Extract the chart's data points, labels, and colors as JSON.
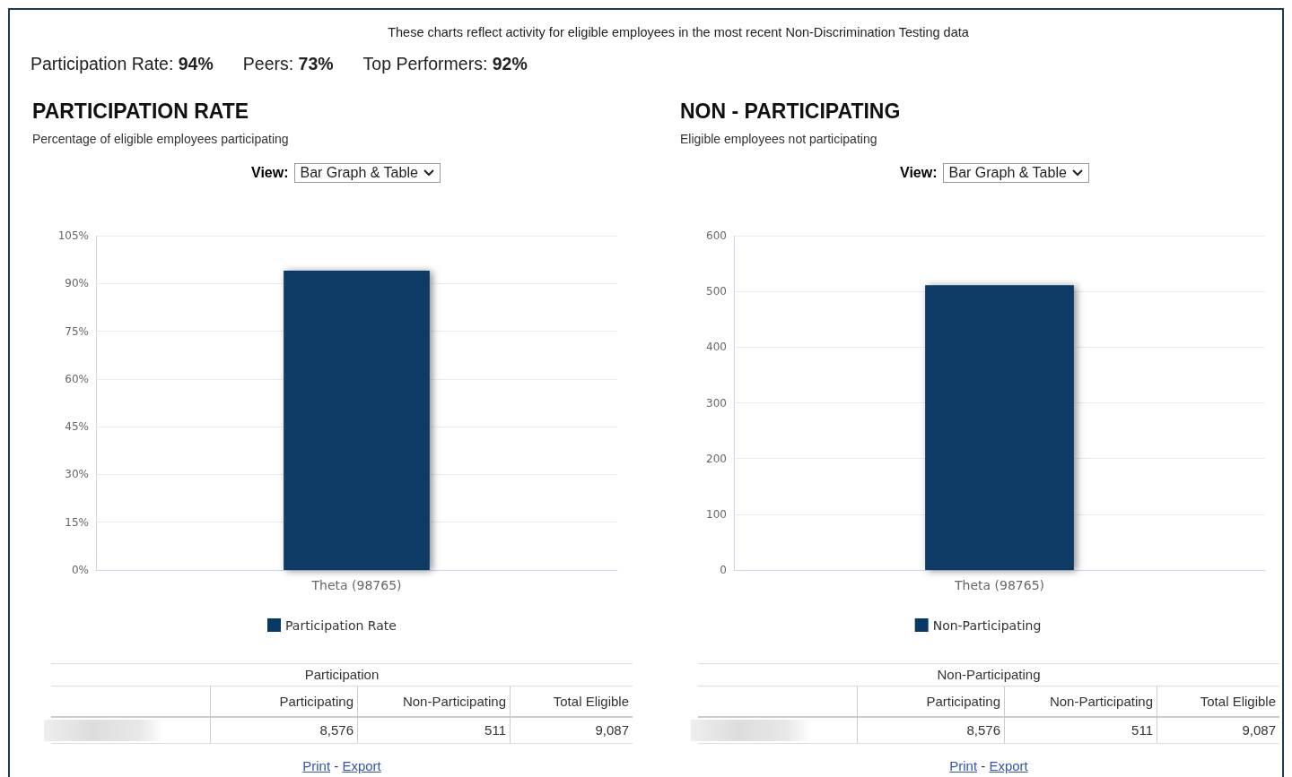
{
  "chart_data": [
    {
      "type": "bar",
      "title": "PARTICIPATION RATE",
      "subtitle": "Percentage of eligible employees participating",
      "categories": [
        "Theta (98765)"
      ],
      "series": [
        {
          "name": "Participation Rate",
          "color": "#083a66",
          "values": [
            94
          ]
        }
      ],
      "ylim": [
        0,
        105
      ],
      "yticks": [
        {
          "value": 0,
          "label": "0%"
        },
        {
          "value": 15,
          "label": "15%"
        },
        {
          "value": 30,
          "label": "30%"
        },
        {
          "value": 45,
          "label": "45%"
        },
        {
          "value": 60,
          "label": "60%"
        },
        {
          "value": 75,
          "label": "75%"
        },
        {
          "value": 90,
          "label": "90%"
        },
        {
          "value": 105,
          "label": "105%"
        }
      ],
      "grid": "y",
      "legend": "bottom",
      "annotations": [
        "These charts reflect activity for eligible employees in the most recent Non-Discrimination Testing data",
        "Participation Rate: 94%",
        "Peers: 73%",
        "Top Performers: 92%",
        "View:",
        "Bar Graph & Table",
        "Participation",
        "Participating",
        "Non-Participating",
        "Total Eligible",
        "8,576",
        "511",
        "9,087",
        "Print",
        "-",
        "Export"
      ]
    },
    {
      "type": "bar",
      "title": "NON - PARTICIPATING",
      "subtitle": "Eligible employees not participating",
      "categories": [
        "Theta (98765)"
      ],
      "series": [
        {
          "name": "Non-Participating",
          "color": "#083a66",
          "values": [
            511
          ]
        }
      ],
      "ylim": [
        0,
        600
      ],
      "yticks": [
        0,
        100,
        200,
        300,
        400,
        500,
        600
      ],
      "grid": "y",
      "legend": "bottom",
      "annotations": [
        "View:",
        "Bar Graph & Table",
        "Non-Participating",
        "Participating",
        "Non-Participating",
        "Total Eligible",
        "8,576",
        "511",
        "9,087",
        "Print",
        "-",
        "Export"
      ]
    }
  ]
}
